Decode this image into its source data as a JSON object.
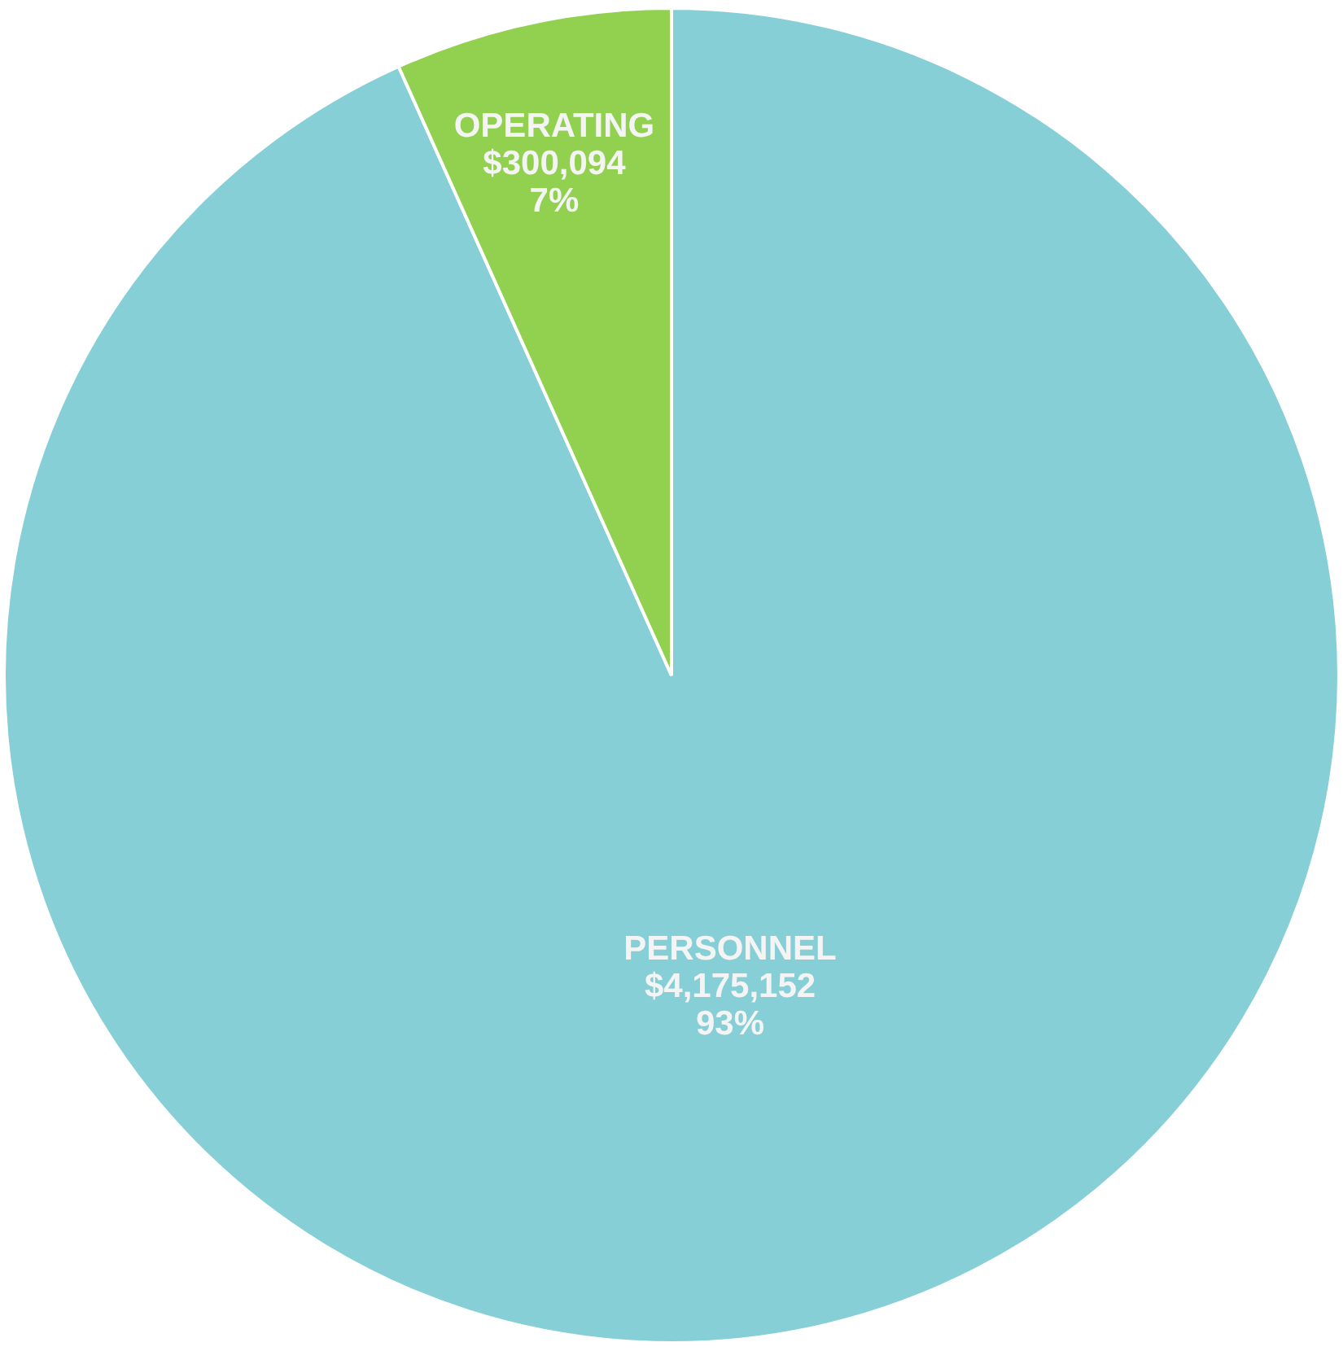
{
  "chart_data": {
    "type": "pie",
    "categories": [
      "PERSONNEL",
      "OPERATING"
    ],
    "values": [
      4175152,
      300094
    ],
    "colors": [
      "#86cfd6",
      "#92d050"
    ],
    "value_labels": [
      "$4,175,152\n93%",
      "$300,094\n7%"
    ]
  }
}
